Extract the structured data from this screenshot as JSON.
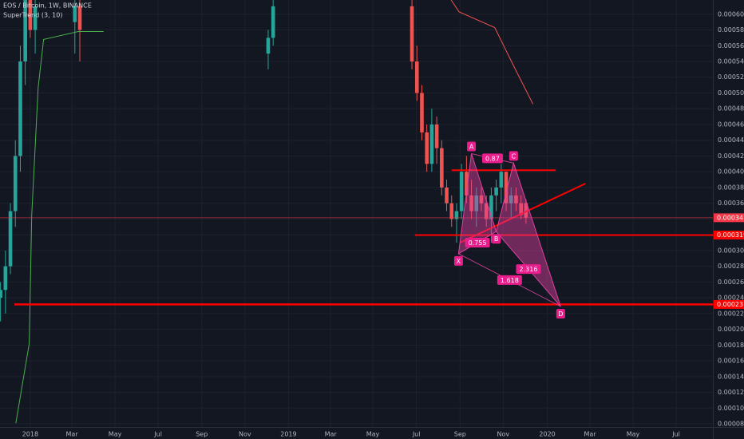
{
  "chart_data": {
    "type": "candlestick",
    "title": "EOS / Bitcoin, 1W, BINANCE",
    "indicator": "SuperTrend (3, 10)",
    "xlim": [
      -6.1,
      137.7
    ],
    "ylim": [
      7.6e-05,
      0.000618
    ],
    "grid": true,
    "up_color": "#26a69a",
    "down_color": "#ef5350",
    "xticks": [
      {
        "value": 0,
        "label": "2018"
      },
      {
        "value": 8.4,
        "label": "Mar"
      },
      {
        "value": 17.1,
        "label": "May"
      },
      {
        "value": 25.8,
        "label": "Jul"
      },
      {
        "value": 34.6,
        "label": "Sep"
      },
      {
        "value": 43.3,
        "label": "Nov"
      },
      {
        "value": 52.1,
        "label": "2019"
      },
      {
        "value": 60.6,
        "label": "Mar"
      },
      {
        "value": 69.1,
        "label": "May"
      },
      {
        "value": 77.9,
        "label": "Jul"
      },
      {
        "value": 86.7,
        "label": "Sep"
      },
      {
        "value": 95.4,
        "label": "Nov"
      },
      {
        "value": 104.3,
        "label": "2020"
      },
      {
        "value": 112.9,
        "label": "Mar"
      },
      {
        "value": 121.6,
        "label": "May"
      },
      {
        "value": 130.3,
        "label": "Jul"
      }
    ],
    "yticks": [
      {
        "value": 8e-05,
        "label": "0.0000800"
      },
      {
        "value": 0.0001,
        "label": "0.0001000"
      },
      {
        "value": 0.00012,
        "label": "0.0001200"
      },
      {
        "value": 0.00014,
        "label": "0.0001400"
      },
      {
        "value": 0.00016,
        "label": "0.0001600"
      },
      {
        "value": 0.00018,
        "label": "0.0001800"
      },
      {
        "value": 0.0002,
        "label": "0.0002000"
      },
      {
        "value": 0.00022,
        "label": "0.0002200"
      },
      {
        "value": 0.00024,
        "label": "0.0002400"
      },
      {
        "value": 0.00026,
        "label": "0.0002600"
      },
      {
        "value": 0.00028,
        "label": "0.0002800"
      },
      {
        "value": 0.0003,
        "label": "0.0003000"
      },
      {
        "value": 0.00032,
        "label": "0.0003200"
      },
      {
        "value": 0.00034,
        "label": "0.0003400"
      },
      {
        "value": 0.00036,
        "label": "0.0003600"
      },
      {
        "value": 0.00038,
        "label": "0.0003800"
      },
      {
        "value": 0.0004,
        "label": "0.0004000"
      },
      {
        "value": 0.00042,
        "label": "0.0004200"
      },
      {
        "value": 0.00044,
        "label": "0.0004400"
      },
      {
        "value": 0.00046,
        "label": "0.0004600"
      },
      {
        "value": 0.00048,
        "label": "0.0004800"
      },
      {
        "value": 0.0005,
        "label": "0.0005000"
      },
      {
        "value": 0.00052,
        "label": "0.0005200"
      },
      {
        "value": 0.00054,
        "label": "0.0005400"
      },
      {
        "value": 0.00056,
        "label": "0.0005600"
      },
      {
        "value": 0.00058,
        "label": "0.0005800"
      },
      {
        "value": 0.0006,
        "label": "0.0006000"
      }
    ],
    "candles": {
      "x": [
        -6,
        -5,
        -4,
        -3,
        -2,
        -1,
        0,
        1,
        9,
        10,
        48,
        49,
        77,
        78,
        79,
        80,
        81,
        82,
        83,
        84,
        85,
        86,
        87,
        88,
        89,
        90,
        91,
        92,
        93,
        94,
        95,
        96,
        97,
        98,
        99,
        100
      ],
      "open": [
        0.00024,
        0.00025,
        0.00028,
        0.00035,
        0.00042,
        0.00054,
        0.00062,
        0.00058,
        0.00059,
        0.00061,
        0.00055,
        0.00057,
        0.00061,
        0.00054,
        0.0005,
        0.00045,
        0.00041,
        0.00046,
        0.00043,
        0.00038,
        0.00036,
        0.00034,
        0.00035,
        0.0004,
        0.00037,
        0.00035,
        0.00037,
        0.00036,
        0.00034,
        0.00037,
        0.00038,
        0.0004,
        0.00036,
        0.00037,
        0.00036,
        0.00036
      ],
      "high": [
        0.00026,
        0.0003,
        0.00036,
        0.00044,
        0.00056,
        0.00063,
        0.00063,
        0.00062,
        0.00062,
        0.00062,
        0.00058,
        0.00062,
        0.00062,
        0.00056,
        0.00051,
        0.00046,
        0.00048,
        0.00047,
        0.00044,
        0.00039,
        0.00037,
        0.00036,
        0.00041,
        0.00042,
        0.00039,
        0.00038,
        0.00038,
        0.00037,
        0.00038,
        0.00039,
        0.00041,
        0.0004,
        0.00038,
        0.00038,
        0.00037,
        0.000365
      ],
      "low": [
        0.00021,
        0.00022,
        0.00027,
        0.00033,
        0.0004,
        0.00051,
        0.00057,
        0.00055,
        0.00055,
        0.00054,
        0.00053,
        0.00056,
        0.00053,
        0.00049,
        0.00044,
        0.0004,
        0.0004,
        0.00041,
        0.00037,
        0.00035,
        0.00033,
        0.00031,
        0.00034,
        0.00036,
        0.00034,
        0.00033,
        0.00035,
        0.00033,
        0.00031,
        0.00035,
        0.00036,
        0.00035,
        0.00034,
        0.00035,
        0.00034,
        0.000334
      ],
      "close": [
        0.00025,
        0.00028,
        0.00035,
        0.00042,
        0.00054,
        0.00062,
        0.00058,
        0.00061,
        0.00061,
        0.00058,
        0.00057,
        0.00061,
        0.00054,
        0.0005,
        0.00045,
        0.00041,
        0.00046,
        0.00043,
        0.00038,
        0.00036,
        0.00034,
        0.00035,
        0.0004,
        0.00037,
        0.00035,
        0.00037,
        0.00036,
        0.00034,
        0.00037,
        0.00038,
        0.0004,
        0.00036,
        0.00037,
        0.00036,
        0.000345,
        0.0003416
      ]
    },
    "series": [
      {
        "name": "SuperTrend up",
        "color": "#4caf50",
        "x": [
          -2.9,
          -0.2,
          0.3,
          1.6,
          2.7,
          9.7,
          14.8
        ],
        "values": [
          8.1e-05,
          0.000182,
          0.000345,
          0.000507,
          0.000568,
          0.000578,
          0.000578
        ]
      },
      {
        "name": "SuperTrend down",
        "color": "#ef5350",
        "x": [
          84.9,
          86.5,
          93.7,
          97.7,
          101.4
        ],
        "values": [
          0.000618,
          0.000603,
          0.000583,
          0.000532,
          0.000486
        ]
      }
    ],
    "price_lines": [
      {
        "value": 0.0003416,
        "label": "0.0003416",
        "x_start": -6.1,
        "color": "#f23645",
        "width": 0.8
      },
      {
        "value": 0.0003197,
        "label": "0.0003197",
        "x_start": 77.6,
        "color": "#ff0000",
        "width": 2
      },
      {
        "value": 0.0002316,
        "label": "0.0002316",
        "x_start": -3.2,
        "color": "#ff0000",
        "width": 2.5
      }
    ],
    "segments": [
      {
        "x": [
          85,
          106
        ],
        "values": [
          0.000402,
          0.000402
        ],
        "color": "#ff0000"
      },
      {
        "x": [
          86.7,
          112
        ],
        "values": [
          0.00031,
          0.000385
        ],
        "color": "#ff0000"
      }
    ],
    "pattern": {
      "color": "#e040a0",
      "points": [
        {
          "name": "X",
          "x": 86.4,
          "value": 0.000296
        },
        {
          "name": "A",
          "x": 89,
          "value": 0.000423
        },
        {
          "name": "B",
          "x": 94,
          "value": 0.000324
        },
        {
          "name": "C",
          "x": 97.5,
          "value": 0.000411
        },
        {
          "name": "D",
          "x": 107,
          "value": 0.000229
        }
      ],
      "ratios": [
        0.87,
        0.755,
        2.316,
        1.618
      ]
    }
  }
}
